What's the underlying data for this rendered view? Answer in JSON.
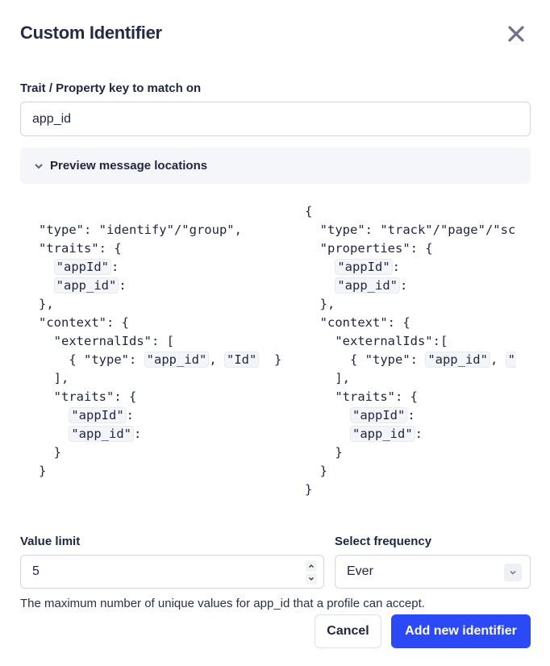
{
  "dialog": {
    "title": "Custom Identifier",
    "close_icon": "close-icon"
  },
  "trait_field": {
    "label": "Trait / Property key to match on",
    "value": "app_id"
  },
  "preview": {
    "label": "Preview message locations",
    "expanded": true,
    "left_lines": [
      [],
      [
        {
          "s": "\"type\": \"identify\"/\"group\","
        }
      ],
      [
        {
          "s": "\"traits\": {"
        }
      ],
      [
        {
          "s": "  "
        },
        {
          "c": "\"appId\""
        },
        {
          "s": ":"
        }
      ],
      [
        {
          "s": "  "
        },
        {
          "c": "\"app_id\""
        },
        {
          "s": ":"
        }
      ],
      [
        {
          "s": "},"
        }
      ],
      [
        {
          "s": "\"context\": {"
        }
      ],
      [
        {
          "s": "  \"externalIds\": ["
        }
      ],
      [
        {
          "s": "    { \"type\": "
        },
        {
          "c": "\"app_id\""
        },
        {
          "s": ", "
        },
        {
          "c": "\"Id\""
        },
        {
          "s": "  }"
        }
      ],
      [
        {
          "s": "  ],"
        }
      ],
      [
        {
          "s": "  \"traits\": {"
        }
      ],
      [
        {
          "s": "    "
        },
        {
          "c": "\"appId\""
        },
        {
          "s": ":"
        }
      ],
      [
        {
          "s": "    "
        },
        {
          "c": "\"app_id\""
        },
        {
          "s": ":"
        }
      ],
      [
        {
          "s": "  }"
        }
      ],
      [
        {
          "s": "}"
        }
      ]
    ],
    "right_lines": [
      [
        {
          "s": "{"
        }
      ],
      [
        {
          "s": "  \"type\": \"track\"/\"page\"/\"screen\","
        }
      ],
      [
        {
          "s": "  \"properties\": {"
        }
      ],
      [
        {
          "s": "    "
        },
        {
          "c": "\"appId\""
        },
        {
          "s": ":"
        }
      ],
      [
        {
          "s": "    "
        },
        {
          "c": "\"app_id\""
        },
        {
          "s": ":"
        }
      ],
      [
        {
          "s": "  },"
        }
      ],
      [
        {
          "s": "  \"context\": {"
        }
      ],
      [
        {
          "s": "    \"externalIds\":["
        }
      ],
      [
        {
          "s": "      { \"type\": "
        },
        {
          "c": "\"app_id\""
        },
        {
          "s": ", "
        },
        {
          "c": "\"Id\""
        },
        {
          "s": "  }"
        }
      ],
      [
        {
          "s": "    ],"
        }
      ],
      [
        {
          "s": "    \"traits\": {"
        }
      ],
      [
        {
          "s": "      "
        },
        {
          "c": "\"appId\""
        },
        {
          "s": ":"
        }
      ],
      [
        {
          "s": "      "
        },
        {
          "c": "\"app_id\""
        },
        {
          "s": ":"
        }
      ],
      [
        {
          "s": "    }"
        }
      ],
      [
        {
          "s": "  }"
        }
      ],
      [
        {
          "s": "}"
        }
      ]
    ]
  },
  "value_limit": {
    "label": "Value limit",
    "value": "5"
  },
  "frequency": {
    "label": "Select frequency",
    "selected": "Ever"
  },
  "help_text": "The maximum number of unique values for app_id that a profile can accept.",
  "actions": {
    "cancel": "Cancel",
    "submit": "Add new identifier",
    "primary_color": "#2b4af5"
  }
}
